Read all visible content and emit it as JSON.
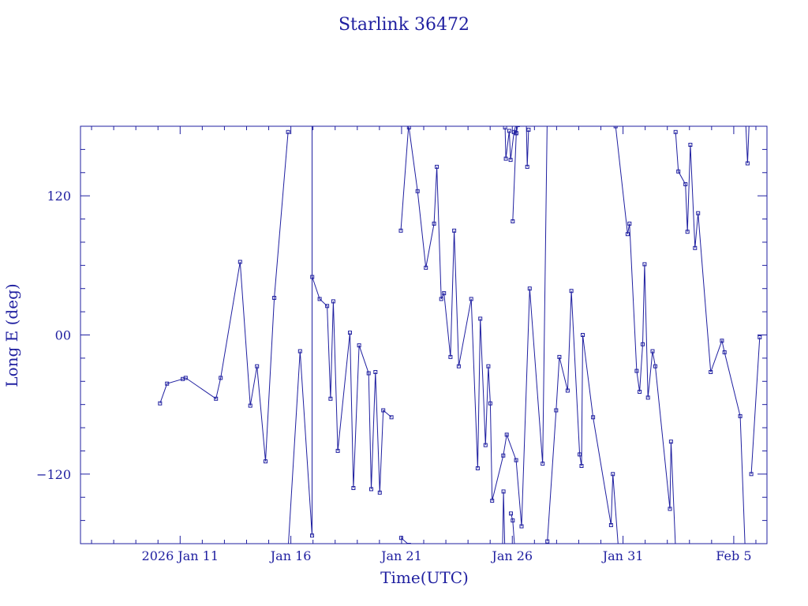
{
  "chart_data": {
    "type": "line",
    "title": "Starlink 36472",
    "xlabel": "Time(UTC)",
    "ylabel": "Long E (deg)",
    "x_axis_kind": "date",
    "xlim": [
      "2026-01-06T12:00",
      "2026-02-06T12:00"
    ],
    "ylim": [
      -180,
      180
    ],
    "x_tick_labels": [
      {
        "date": "2026-01-11",
        "label": "2026 Jan 11"
      },
      {
        "date": "2026-01-16",
        "label": "Jan 16"
      },
      {
        "date": "2026-01-21",
        "label": "Jan 21"
      },
      {
        "date": "2026-01-26",
        "label": "Jan 26"
      },
      {
        "date": "2026-01-31",
        "label": "Jan 31"
      },
      {
        "date": "2026-02-05",
        "label": "Feb  5"
      }
    ],
    "y_ticks": [
      -120,
      0,
      120
    ],
    "y_tick_labels": [
      "−120",
      "00",
      "120"
    ],
    "grid": false,
    "colors": {
      "line": "#1f1fa0",
      "axis": "#1f1fa0",
      "text": "#1f1fa0"
    },
    "series": [
      {
        "marker": "square",
        "points": [
          {
            "t": "2026-01-10T02:12",
            "lon": -59
          },
          {
            "t": "2026-01-10T09:50",
            "lon": -42
          },
          {
            "t": "2026-01-11T02:50",
            "lon": -38
          },
          {
            "t": "2026-01-11T06:00",
            "lon": -37
          },
          {
            "t": "2026-01-12T14:50",
            "lon": -55
          },
          {
            "t": "2026-01-12T20:00",
            "lon": -37
          },
          {
            "t": "2026-01-13T17:00",
            "lon": 63
          },
          {
            "t": "2026-01-14T04:00",
            "lon": -61
          },
          {
            "t": "2026-01-14T11:20",
            "lon": -27
          },
          {
            "t": "2026-01-14T20:30",
            "lon": -109
          },
          {
            "t": "2026-01-15T06:00",
            "lon": 32
          },
          {
            "t": "2026-01-15T21:00",
            "lon": 175,
            "break_after": true
          },
          {
            "t": "2026-01-15T21:00",
            "lon": -185
          },
          {
            "t": "2026-01-16T10:00",
            "lon": -14
          },
          {
            "t": "2026-01-16T23:00",
            "lon": -173
          },
          {
            "t": "2026-01-16T23:00",
            "lon": 187,
            "break_after": true
          },
          {
            "t": "2026-01-16T23:10",
            "lon": 50
          },
          {
            "t": "2026-01-17T07:10",
            "lon": 31
          },
          {
            "t": "2026-01-17T15:20",
            "lon": 25
          },
          {
            "t": "2026-01-17T19:00",
            "lon": -55
          },
          {
            "t": "2026-01-17T22:00",
            "lon": 29
          },
          {
            "t": "2026-01-18T02:50",
            "lon": -100
          },
          {
            "t": "2026-01-18T16:00",
            "lon": 2
          },
          {
            "t": "2026-01-18T19:50",
            "lon": -132
          },
          {
            "t": "2026-01-19T02:00",
            "lon": -9
          },
          {
            "t": "2026-01-19T12:20",
            "lon": -33
          },
          {
            "t": "2026-01-19T15:10",
            "lon": -133
          },
          {
            "t": "2026-01-19T19:40",
            "lon": -32
          },
          {
            "t": "2026-01-20T00:20",
            "lon": -136
          },
          {
            "t": "2026-01-20T04:10",
            "lon": -65
          },
          {
            "t": "2026-01-20T13:00",
            "lon": -71,
            "break_after": true
          },
          {
            "t": "2026-01-20T23:10",
            "lon": 90
          },
          {
            "t": "2026-01-21T08:00",
            "lon": 185,
            "break_after": true
          },
          {
            "t": "2026-01-20T23:30",
            "lon": -175
          },
          {
            "t": "2026-01-21T08:00",
            "lon": -181,
            "break_after": true
          },
          {
            "t": "2026-01-21T08:00",
            "lon": 179
          },
          {
            "t": "2026-01-21T17:20",
            "lon": 124
          },
          {
            "t": "2026-01-22T02:20",
            "lon": 58
          },
          {
            "t": "2026-01-22T11:10",
            "lon": 96
          },
          {
            "t": "2026-01-22T14:10",
            "lon": 145
          },
          {
            "t": "2026-01-22T19:00",
            "lon": 31
          },
          {
            "t": "2026-01-22T22:00",
            "lon": 36
          },
          {
            "t": "2026-01-23T05:00",
            "lon": -19
          },
          {
            "t": "2026-01-23T09:00",
            "lon": 90
          },
          {
            "t": "2026-01-23T14:00",
            "lon": -27
          },
          {
            "t": "2026-01-24T03:30",
            "lon": 31
          },
          {
            "t": "2026-01-24T10:30",
            "lon": -115
          },
          {
            "t": "2026-01-24T13:20",
            "lon": 14
          },
          {
            "t": "2026-01-24T19:00",
            "lon": -95
          },
          {
            "t": "2026-01-24T22:00",
            "lon": -27
          },
          {
            "t": "2026-01-25T00:10",
            "lon": -59
          },
          {
            "t": "2026-01-25T02:10",
            "lon": -143
          },
          {
            "t": "2026-01-25T14:10",
            "lon": -104
          },
          {
            "t": "2026-01-25T18:00",
            "lon": -86
          },
          {
            "t": "2026-01-26T04:10",
            "lon": -108
          },
          {
            "t": "2026-01-26T10:00",
            "lon": -165
          },
          {
            "t": "2026-01-26T18:50",
            "lon": 40
          },
          {
            "t": "2026-01-27T08:50",
            "lon": -111
          },
          {
            "t": "2026-01-27T14:00",
            "lon": 198,
            "break_after": true
          },
          {
            "t": "2026-01-27T14:00",
            "lon": -178
          },
          {
            "t": "2026-01-27T23:30",
            "lon": -65
          },
          {
            "t": "2026-01-28T03:00",
            "lon": -19
          },
          {
            "t": "2026-01-28T12:00",
            "lon": -48
          },
          {
            "t": "2026-01-28T16:00",
            "lon": 38
          },
          {
            "t": "2026-01-29T01:00",
            "lon": -103
          },
          {
            "t": "2026-01-29T03:00",
            "lon": -113
          },
          {
            "t": "2026-01-29T04:20",
            "lon": 0
          },
          {
            "t": "2026-01-29T15:30",
            "lon": -71
          },
          {
            "t": "2026-01-30T11:00",
            "lon": -164
          },
          {
            "t": "2026-01-30T13:00",
            "lon": -120
          },
          {
            "t": "2026-01-30T19:00",
            "lon": -184,
            "break_after": true
          },
          {
            "t": "2026-01-30T16:00",
            "lon": 180
          },
          {
            "t": "2026-01-31T05:00",
            "lon": 87
          },
          {
            "t": "2026-01-31T07:00",
            "lon": 96
          },
          {
            "t": "2026-01-31T14:50",
            "lon": -31
          },
          {
            "t": "2026-01-31T18:00",
            "lon": -49
          },
          {
            "t": "2026-01-31T21:20",
            "lon": -8
          },
          {
            "t": "2026-01-31T23:20",
            "lon": 61
          },
          {
            "t": "2026-02-01T03:00",
            "lon": -54
          },
          {
            "t": "2026-02-01T08:00",
            "lon": -14
          },
          {
            "t": "2026-02-01T11:00",
            "lon": -27
          },
          {
            "t": "2026-02-02T02:50",
            "lon": -150
          },
          {
            "t": "2026-02-02T04:00",
            "lon": -92
          },
          {
            "t": "2026-02-02T09:00",
            "lon": -185,
            "break_after": true
          },
          {
            "t": "2026-02-02T09:00",
            "lon": 175
          },
          {
            "t": "2026-02-02T12:00",
            "lon": 141
          },
          {
            "t": "2026-02-02T19:40",
            "lon": 130
          },
          {
            "t": "2026-02-02T21:50",
            "lon": 89
          },
          {
            "t": "2026-02-03T01:00",
            "lon": 164
          },
          {
            "t": "2026-02-03T06:00",
            "lon": 75
          },
          {
            "t": "2026-02-03T09:20",
            "lon": 105
          },
          {
            "t": "2026-02-03T23:00",
            "lon": -32
          },
          {
            "t": "2026-02-04T11:10",
            "lon": -5
          },
          {
            "t": "2026-02-04T14:00",
            "lon": -15
          },
          {
            "t": "2026-02-05T07:00",
            "lon": -70
          },
          {
            "t": "2026-02-05T12:20",
            "lon": -184,
            "break_after": true
          },
          {
            "t": "2026-02-05T19:00",
            "lon": -120
          },
          {
            "t": "2026-02-06T04:10",
            "lon": -2
          }
        ]
      },
      {
        "marker": "square",
        "points": [
          {
            "t": "2026-01-26T15:00",
            "lon": 190
          },
          {
            "t": "2026-01-26T16:10",
            "lon": 145
          },
          {
            "t": "2026-01-26T17:40",
            "lon": 177,
            "break_after": true
          },
          {
            "t": "2026-01-25T16:10",
            "lon": 179
          },
          {
            "t": "2026-01-25T17:00",
            "lon": 152
          },
          {
            "t": "2026-01-25T20:40",
            "lon": 176
          },
          {
            "t": "2026-01-25T22:10",
            "lon": 151
          },
          {
            "t": "2026-01-26T01:50",
            "lon": 175
          },
          {
            "t": "2026-01-26T05:00",
            "lon": 184,
            "break_after": true
          },
          {
            "t": "2026-01-26T15:00",
            "lon": 194
          },
          {
            "t": "2026-01-26T17:40",
            "lon": 193,
            "break_after": true
          },
          {
            "t": "2026-01-25T22:30",
            "lon": -154
          },
          {
            "t": "2026-01-26T00:30",
            "lon": -160
          },
          {
            "t": "2026-01-26T03:00",
            "lon": -188,
            "break_after": true
          },
          {
            "t": "2026-01-26T04:20",
            "lon": 174
          },
          {
            "t": "2026-01-26T06:00",
            "lon": 181,
            "break_after": true
          },
          {
            "t": "2026-01-25T13:10",
            "lon": -195
          },
          {
            "t": "2026-01-25T14:30",
            "lon": -135
          },
          {
            "t": "2026-01-25T16:00",
            "lon": -188,
            "break_after": true
          },
          {
            "t": "2026-01-26T00:30",
            "lon": 98
          },
          {
            "t": "2026-01-26T04:20",
            "lon": 174
          },
          {
            "t": "2026-01-26T05:00",
            "lon": 190
          },
          {
            "t": "2026-01-26T06:20",
            "lon": 187,
            "break_after": true
          },
          {
            "t": "2026-02-02T00:00",
            "lon": 186
          },
          {
            "t": "2026-02-02T00:30",
            "lon": 188,
            "break_after": true
          },
          {
            "t": "2026-02-05T12:00",
            "lon": 200
          },
          {
            "t": "2026-02-05T15:00",
            "lon": 148
          },
          {
            "t": "2026-02-05T17:00",
            "lon": 190
          }
        ]
      }
    ]
  }
}
